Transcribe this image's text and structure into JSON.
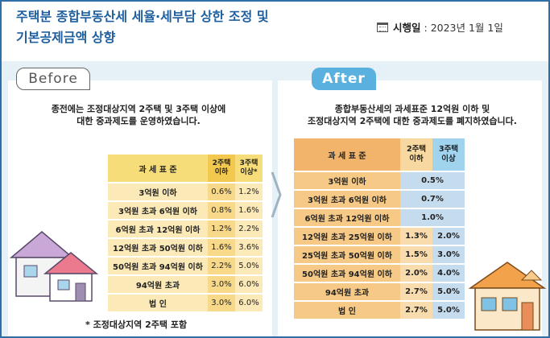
{
  "header": {
    "title_line1": "주택분 종합부동산세 세율·세부담 상한 조정 및",
    "title_line2": "기본공제금액 상향",
    "effective_label": "시행일",
    "effective_sep": " : ",
    "effective_date": "2023년 1월 1일"
  },
  "before": {
    "tab": "Before",
    "desc_line1": "종전에는 조정대상지역 2주택 및 3주택 이상에",
    "desc_line2": "대한 중과제도를 운영하였습니다.",
    "table": {
      "headers": [
        "과 세 표 준",
        "2주택 이하",
        "3주택 이상*"
      ],
      "rows": [
        [
          "3억원 이하",
          "0.6%",
          "1.2%"
        ],
        [
          "3억원 초과 6억원 이하",
          "0.8%",
          "1.6%"
        ],
        [
          "6억원 초과 12억원 이하",
          "1.2%",
          "2.2%"
        ],
        [
          "12억원 초과 50억원 이하",
          "1.6%",
          "3.6%"
        ],
        [
          "50억원 초과 94억원 이하",
          "2.2%",
          "5.0%"
        ],
        [
          "94억원 초과",
          "3.0%",
          "6.0%"
        ],
        [
          "법 인",
          "3.0%",
          "6.0%"
        ]
      ]
    },
    "footnote": "* 조정대상지역 2주택 포함"
  },
  "after": {
    "tab": "After",
    "desc_line1": "종합부동산세의 과세표준 12억원 이하 및",
    "desc_line2": "조정대상지역 2주택에 대한 중과제도를 폐지하였습니다.",
    "table": {
      "headers": [
        "과 세 표 준",
        "2주택 이하",
        "3주택 이상"
      ],
      "rows": [
        [
          "3억원 이하",
          "0.5%"
        ],
        [
          "3억원 초과 6억원 이하",
          "0.7%"
        ],
        [
          "6억원 초과 12억원 이하",
          "1.0%"
        ],
        [
          "12억원 초과 25억원 이하",
          "1.3%",
          "2.0%"
        ],
        [
          "25억원 초과 50억원 이하",
          "1.5%",
          "3.0%"
        ],
        [
          "50억원 초과 94억원 이하",
          "2.0%",
          "4.0%"
        ],
        [
          "94억원 초과",
          "2.7%",
          "5.0%"
        ],
        [
          "법 인",
          "2.7%",
          "5.0%"
        ]
      ]
    }
  },
  "colors": {
    "title": "#1f5f9e",
    "border": "#2f6fa8",
    "after_tab": "#5ab0de",
    "body_bg": "#e6f1f7"
  }
}
